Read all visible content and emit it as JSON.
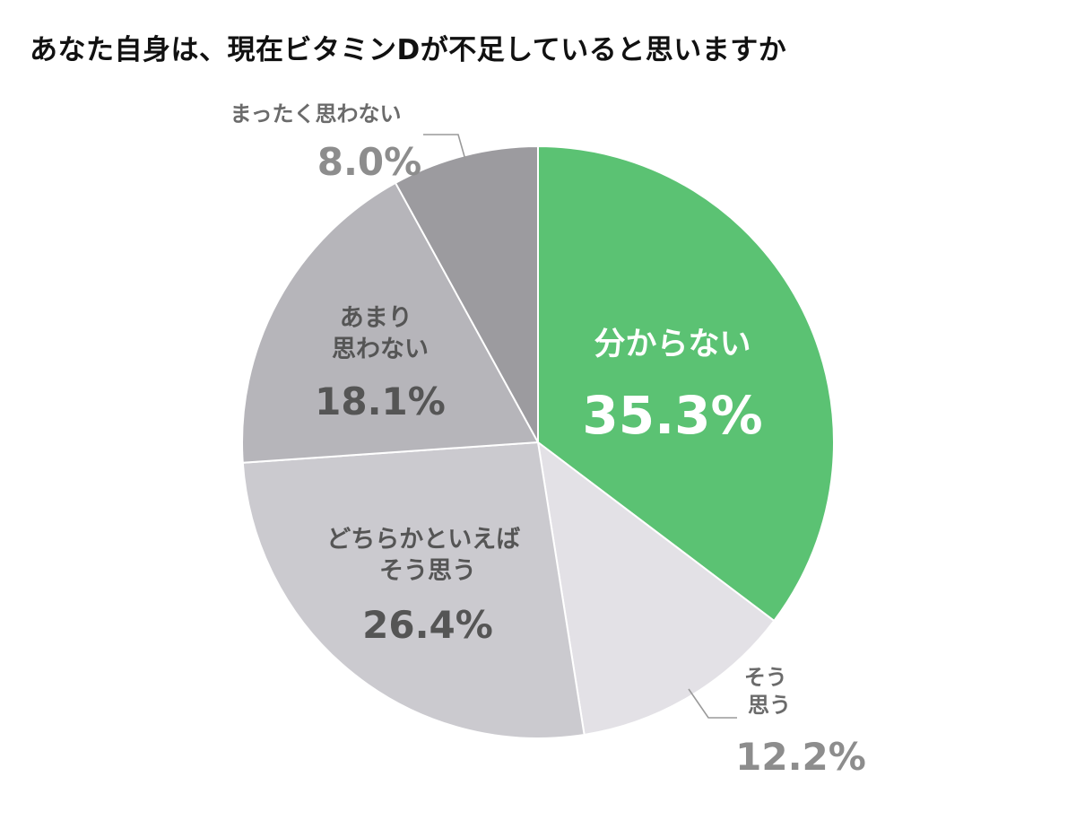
{
  "chart_data": {
    "type": "pie",
    "title": "あなた自身は、現在ビタミンDが不足していると思いますか",
    "start_angle": "12 o'clock",
    "direction": "clockwise",
    "slices": [
      {
        "label": "分からない",
        "value": 35.3,
        "value_label": "35.3%",
        "color": "#5bc273"
      },
      {
        "label": "そう思う",
        "value": 12.2,
        "value_label": "12.2%",
        "color": "#e3e1e6"
      },
      {
        "label": "どちらかといえばそう思う",
        "value": 26.4,
        "value_label": "26.4%",
        "color": "#cbcacf"
      },
      {
        "label": "あまり思わない",
        "value": 18.1,
        "value_label": "18.1%",
        "color": "#b6b5ba"
      },
      {
        "label": "まったく思わない",
        "value": 8.0,
        "value_label": "8.0%",
        "color": "#9c9b9f"
      }
    ]
  }
}
